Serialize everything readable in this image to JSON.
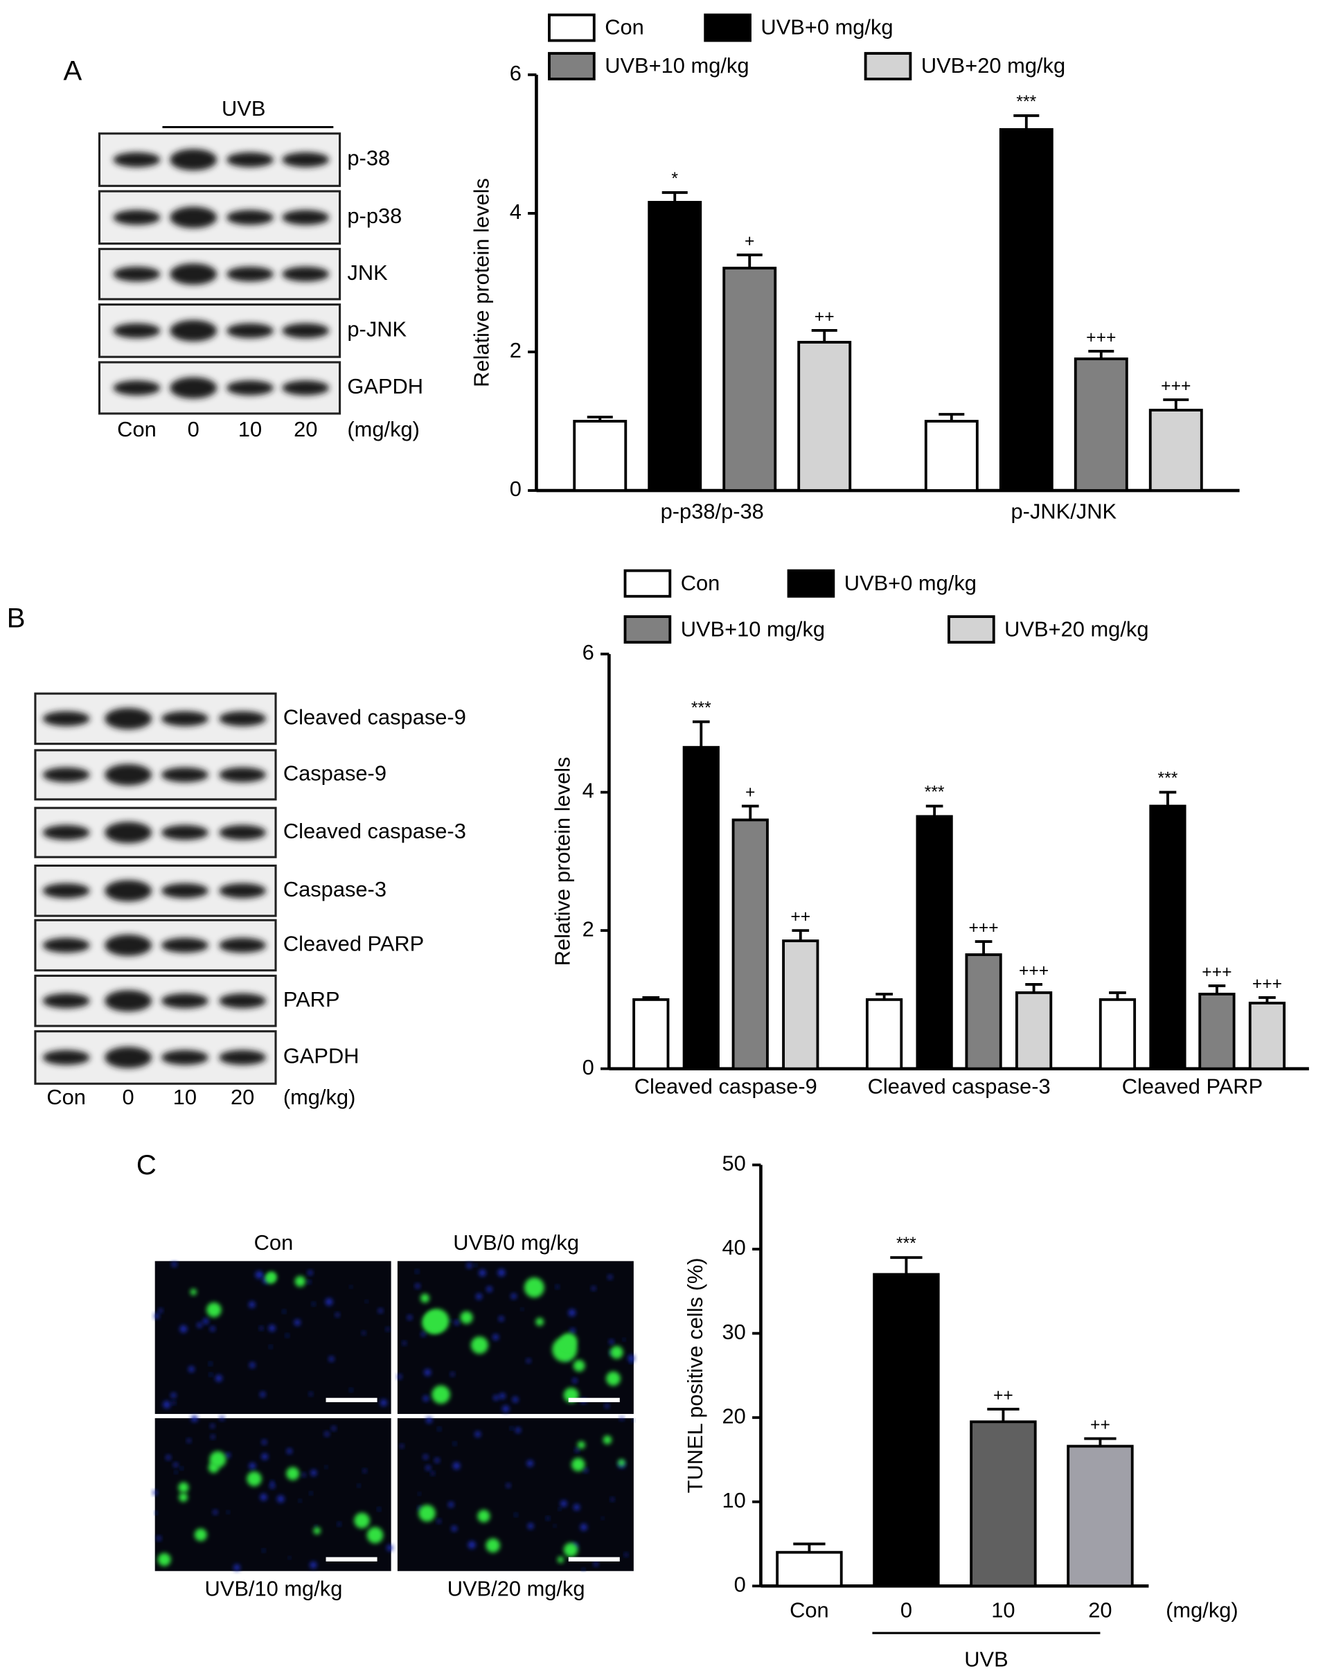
{
  "panel_labels": [
    "A",
    "B",
    "C"
  ],
  "blots": [
    {
      "group_label": "UVB",
      "rows": [
        "p-38",
        "p-p38",
        "JNK",
        "p-JNK",
        "GAPDH"
      ],
      "lanes": [
        "Con",
        "0",
        "10",
        "20"
      ],
      "unit": "(mg/kg)"
    },
    {
      "rows": [
        "Cleaved caspase-9",
        "Caspase-9",
        "Cleaved caspase-3",
        "Caspase-3",
        "Cleaved PARP",
        "PARP",
        "GAPDH"
      ],
      "lanes": [
        "Con",
        "0",
        "10",
        "20"
      ],
      "unit": "(mg/kg)"
    }
  ],
  "micrographs": {
    "labels": [
      "Con",
      "UVB/0 mg/kg",
      "UVB/10 mg/kg",
      "UVB/20 mg/kg"
    ]
  },
  "chart_data": [
    {
      "type": "bar",
      "ylabel": "Relative protein levels",
      "categories": [
        "p-p38/p-38",
        "p-JNK/JNK"
      ],
      "series": [
        {
          "name": "Con",
          "color": "#ffffff",
          "values": [
            1.0,
            1.0
          ],
          "errors": [
            0.06,
            0.1
          ],
          "annotations": [
            null,
            null
          ]
        },
        {
          "name": "UVB+0 mg/kg",
          "color": "#000000",
          "values": [
            4.16,
            5.21
          ],
          "errors": [
            0.14,
            0.2
          ],
          "annotations": [
            "*",
            "***"
          ]
        },
        {
          "name": "UVB+10 mg/kg",
          "color": "#808080",
          "values": [
            3.21,
            1.9
          ],
          "errors": [
            0.19,
            0.11
          ],
          "annotations": [
            "+",
            "+++"
          ]
        },
        {
          "name": "UVB+20 mg/kg",
          "color": "#d3d3d3",
          "values": [
            2.14,
            1.16
          ],
          "errors": [
            0.17,
            0.15
          ],
          "annotations": [
            "++",
            "+++"
          ]
        }
      ],
      "ylim": [
        0,
        6
      ],
      "yticks": [
        0,
        2,
        4,
        6
      ]
    },
    {
      "type": "bar",
      "ylabel": "Relative protein levels",
      "categories": [
        "Cleaved caspase-9",
        "Cleaved caspase-3",
        "Cleaved PARP"
      ],
      "series": [
        {
          "name": "Con",
          "color": "#ffffff",
          "values": [
            1.0,
            1.0,
            1.0
          ],
          "errors": [
            0.03,
            0.08,
            0.1
          ],
          "annotations": [
            null,
            null,
            null
          ]
        },
        {
          "name": "UVB+0 mg/kg",
          "color": "#000000",
          "values": [
            4.65,
            3.65,
            3.8
          ],
          "errors": [
            0.37,
            0.15,
            0.2
          ],
          "annotations": [
            "***",
            "***",
            "***"
          ]
        },
        {
          "name": "UVB+10 mg/kg",
          "color": "#808080",
          "values": [
            3.6,
            1.65,
            1.08
          ],
          "errors": [
            0.2,
            0.19,
            0.12
          ],
          "annotations": [
            "+",
            "+++",
            "+++"
          ]
        },
        {
          "name": "UVB+20 mg/kg",
          "color": "#d3d3d3",
          "values": [
            1.85,
            1.1,
            0.95
          ],
          "errors": [
            0.15,
            0.12,
            0.08
          ],
          "annotations": [
            "++",
            "+++",
            "+++"
          ]
        }
      ],
      "ylim": [
        0,
        6
      ],
      "yticks": [
        0,
        2,
        4,
        6
      ]
    },
    {
      "type": "bar",
      "ylabel": "TUNEL positive cells (%)",
      "categories": [
        "Con",
        "0",
        "10",
        "20"
      ],
      "x_unit": "(mg/kg)",
      "group_label": "UVB",
      "values": [
        4,
        37,
        19.5,
        16.6
      ],
      "errors": [
        1,
        2,
        1.5,
        0.9
      ],
      "annotations": [
        null,
        "***",
        "++",
        "++"
      ],
      "colors": [
        "#ffffff",
        "#000000",
        "#606060",
        "#a0a0a8"
      ],
      "ylim": [
        0,
        50
      ],
      "yticks": [
        0,
        10,
        20,
        30,
        40,
        50
      ]
    }
  ]
}
